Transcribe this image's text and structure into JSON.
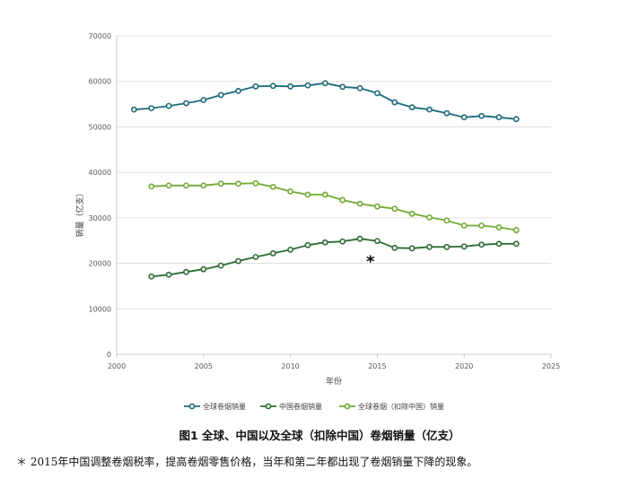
{
  "chart_data": {
    "type": "line",
    "xlabel": "年份",
    "ylabel": "销量（亿支）",
    "xlim": [
      2000,
      2025
    ],
    "ylim": [
      0,
      70000
    ],
    "x_ticks": [
      2000,
      2005,
      2010,
      2015,
      2020,
      2025
    ],
    "y_ticks": [
      0,
      10000,
      20000,
      30000,
      40000,
      50000,
      60000,
      70000
    ],
    "grid": "horizontal",
    "legend_position": "bottom",
    "series": [
      {
        "name": "全球卷烟销量",
        "color": "#1f6b78",
        "x": [
          2001,
          2002,
          2003,
          2004,
          2005,
          2006,
          2007,
          2008,
          2009,
          2010,
          2011,
          2012,
          2013,
          2014,
          2015,
          2016,
          2017,
          2018,
          2019,
          2020,
          2021,
          2022,
          2023
        ],
        "values": [
          53800,
          54100,
          54600,
          55200,
          55900,
          57000,
          57900,
          58900,
          59000,
          58900,
          59100,
          59600,
          58800,
          58500,
          57400,
          55400,
          54300,
          53800,
          53000,
          52100,
          52400,
          52100,
          51700
        ]
      },
      {
        "name": "中国卷烟销量",
        "color": "#2e6b36",
        "x": [
          2002,
          2003,
          2004,
          2005,
          2006,
          2007,
          2008,
          2009,
          2010,
          2011,
          2012,
          2013,
          2014,
          2015,
          2016,
          2017,
          2018,
          2019,
          2020,
          2021,
          2022,
          2023
        ],
        "values": [
          17100,
          17500,
          18100,
          18700,
          19500,
          20500,
          21400,
          22200,
          23000,
          24000,
          24600,
          24800,
          25400,
          24900,
          23400,
          23300,
          23600,
          23600,
          23700,
          24100,
          24300,
          24300
        ]
      },
      {
        "name": "全球卷烟（扣除中国）销量",
        "color": "#73a934",
        "x": [
          2002,
          2003,
          2004,
          2005,
          2006,
          2007,
          2008,
          2009,
          2010,
          2011,
          2012,
          2013,
          2014,
          2015,
          2016,
          2017,
          2018,
          2019,
          2020,
          2021,
          2022,
          2023
        ],
        "values": [
          36900,
          37100,
          37100,
          37100,
          37500,
          37500,
          37600,
          36800,
          35800,
          35100,
          35100,
          33900,
          33100,
          32500,
          32000,
          30900,
          30100,
          29400,
          28300,
          28300,
          27900,
          27300
        ]
      }
    ],
    "annotation": {
      "text": "*",
      "x": 2014.6,
      "y": 20800
    }
  },
  "caption": "图1 全球、中国以及全球（扣除中国）卷烟销量（亿支）",
  "footnote": "＊ 2015年中国调整卷烟税率，提高卷烟零售价格，当年和第二年都出现了卷烟销量下降的现象。"
}
